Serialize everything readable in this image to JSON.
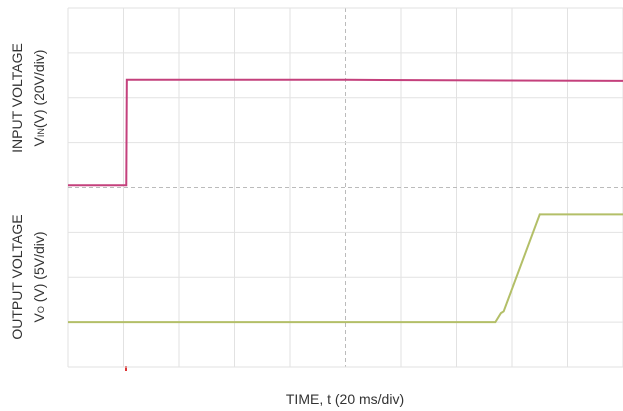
{
  "chart_data": {
    "type": "line",
    "x_label": "TIME, t (20 ms/div)",
    "y_label": {
      "line1": "INPUT VOLTAGE",
      "line2": [
        "V",
        "IN",
        "(V) (20V/div)"
      ]
    },
    "y2_label": {
      "line1": "OUTPUT VOLTAGE",
      "line2": [
        "V",
        "O",
        " (V) (5V/div)"
      ]
    },
    "xlim": [
      0,
      200
    ],
    "xticks": [
      0,
      20,
      40,
      60,
      80,
      100,
      120,
      140,
      160,
      180,
      200
    ],
    "ylim": [
      -80,
      80
    ],
    "yticks": [
      -80,
      -60,
      -40,
      -20,
      0,
      20,
      40,
      60,
      80
    ],
    "y2lim": [
      -5,
      35
    ],
    "grid": true,
    "series": [
      {
        "color": "#c4407c",
        "x": [
          0,
          21,
          21.2,
          100,
          200
        ],
        "values": [
          1,
          1,
          48,
          48,
          47.5
        ]
      },
      {
        "color": "#b3bf68",
        "axis": "y2",
        "x": [
          0,
          154,
          156,
          157,
          170,
          200
        ],
        "values": [
          0,
          0,
          1,
          1.2,
          12,
          12
        ]
      }
    ]
  }
}
